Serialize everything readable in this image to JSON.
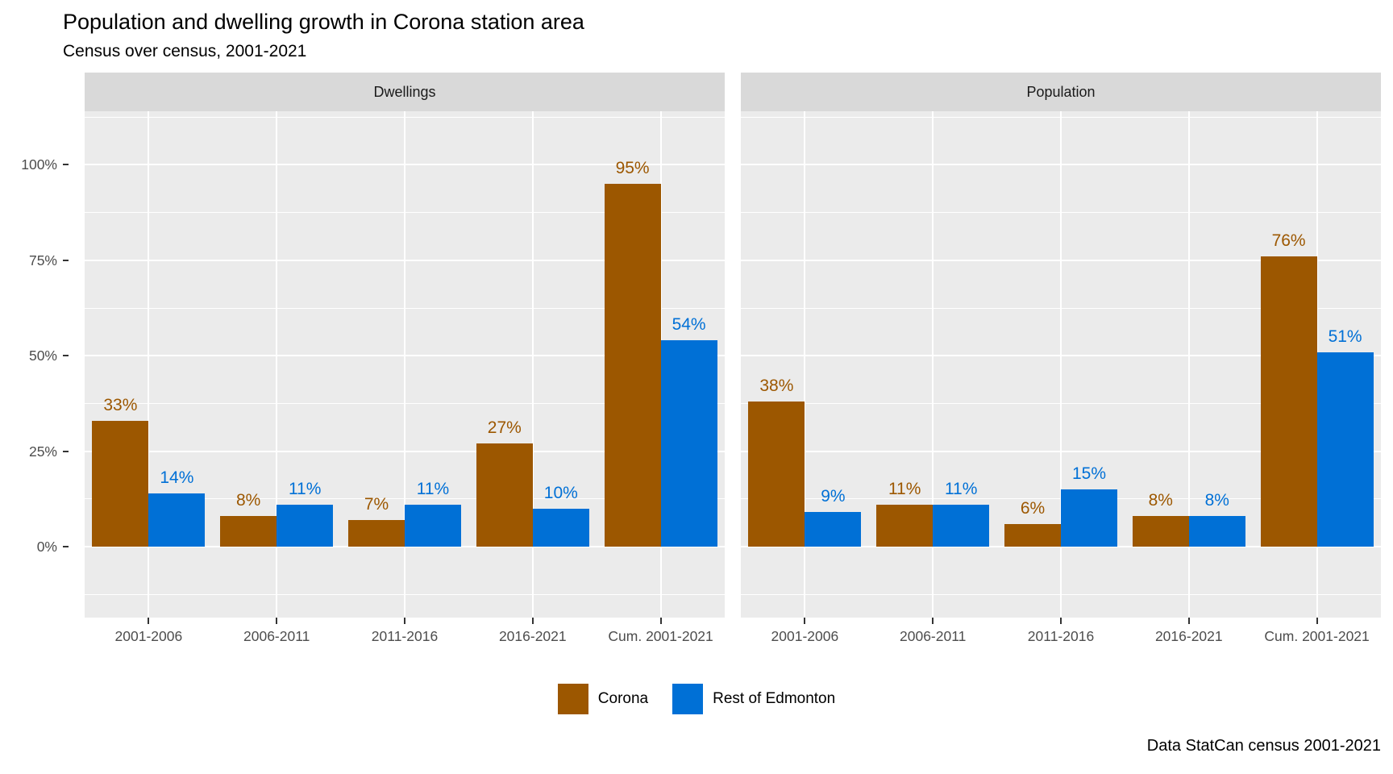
{
  "chart_data": {
    "type": "bar",
    "title": "Population and dwelling growth in Corona station area",
    "subtitle": "Census over census, 2001-2021",
    "caption": "Data StatCan census 2001-2021",
    "categories": [
      "2001-2006",
      "2006-2011",
      "2011-2016",
      "2016-2021",
      "Cum. 2001-2021"
    ],
    "facets": [
      {
        "label": "Dwellings",
        "series": [
          {
            "name": "Corona",
            "values": [
              33,
              8,
              7,
              27,
              95
            ]
          },
          {
            "name": "Rest of Edmonton",
            "values": [
              14,
              11,
              11,
              10,
              54
            ]
          }
        ]
      },
      {
        "label": "Population",
        "series": [
          {
            "name": "Corona",
            "values": [
              38,
              11,
              6,
              8,
              76
            ]
          },
          {
            "name": "Rest of Edmonton",
            "values": [
              9,
              11,
              15,
              8,
              51
            ]
          }
        ]
      }
    ],
    "series_colors": {
      "Corona": "#9C5700",
      "Rest of Edmonton": "#0070D6"
    },
    "value_suffix": "%",
    "y_axis": {
      "ticks": [
        0,
        25,
        50,
        75,
        100
      ],
      "tick_labels": [
        "0%",
        "25%",
        "50%",
        "75%",
        "100%"
      ],
      "minor_ticks": [
        -12.5,
        12.5,
        37.5,
        62.5,
        87.5,
        112.5
      ],
      "range": [
        -18.6,
        114
      ]
    },
    "legend": {
      "position": "bottom",
      "entries": [
        {
          "label": "Corona",
          "color": "#9C5700"
        },
        {
          "label": "Rest of Edmonton",
          "color": "#0070D6"
        }
      ]
    },
    "grid": true,
    "colors": {
      "panel_bg": "#EBEBEB",
      "strip_bg": "#D9D9D9",
      "axis_text": "#4D4D4D",
      "gridline": "#FFFFFF"
    }
  }
}
